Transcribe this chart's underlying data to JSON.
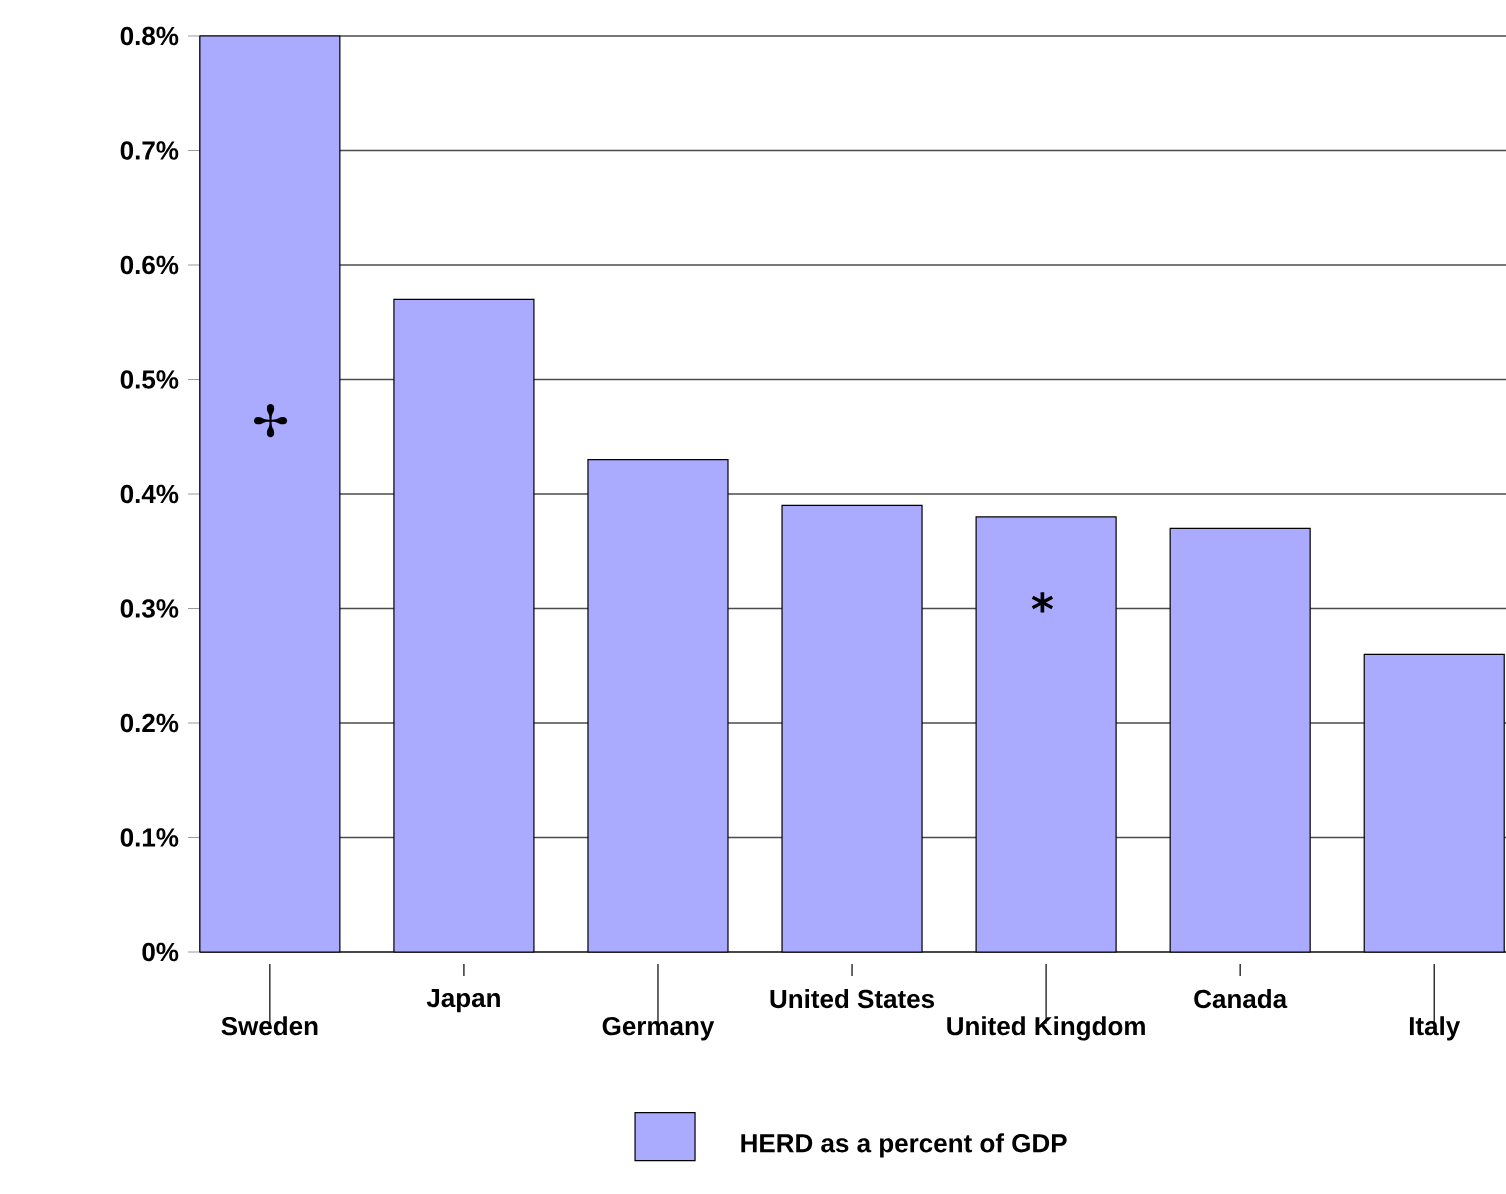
{
  "chart_data": {
    "type": "bar",
    "categories": [
      "Sweden",
      "Japan",
      "Germany",
      "United States",
      "United Kingdom",
      "Canada",
      "Italy"
    ],
    "series": [
      {
        "name": "HERD as a percent of GDP",
        "color": "#aaaaff",
        "values": [
          0.8,
          0.57,
          0.43,
          0.39,
          0.38,
          0.37,
          0.26
        ]
      }
    ],
    "ylim": [
      0,
      0.8
    ],
    "yticks": [
      {
        "value": 0,
        "label": "0%"
      },
      {
        "value": 0.1,
        "label": "0.1%"
      },
      {
        "value": 0.2,
        "label": "0.2%"
      },
      {
        "value": 0.3,
        "label": "0.3%"
      },
      {
        "value": 0.4,
        "label": "0.4%"
      },
      {
        "value": 0.5,
        "label": "0.5%"
      },
      {
        "value": 0.6,
        "label": "0.6%"
      },
      {
        "value": 0.7,
        "label": "0.7%"
      },
      {
        "value": 0.8,
        "label": "0.8%"
      }
    ],
    "annotations": [
      "✢",
      "*"
    ],
    "grid": "y",
    "legend": "bottom"
  }
}
